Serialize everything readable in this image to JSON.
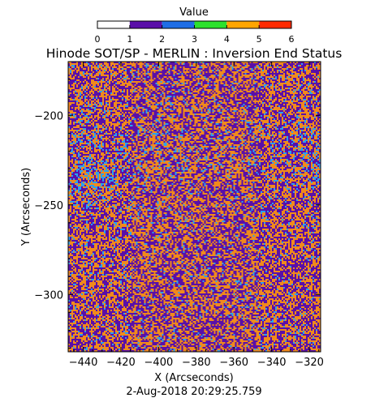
{
  "chart_data": {
    "type": "heatmap",
    "title": "Hinode SOT/SP - MERLIN : Inversion End Status",
    "colorbar": {
      "title": "Value",
      "range": [
        0,
        6
      ],
      "ticks": [
        "0",
        "1",
        "2",
        "3",
        "4",
        "5",
        "6"
      ],
      "segments": [
        {
          "from": 0,
          "to": 1,
          "color": "#ffffff"
        },
        {
          "from": 1,
          "to": 2,
          "color": "#5a0fa8"
        },
        {
          "from": 2,
          "to": 3,
          "color": "#1f6ee6"
        },
        {
          "from": 3,
          "to": 4,
          "color": "#2de12d"
        },
        {
          "from": 4,
          "to": 5,
          "color": "#ffa500"
        },
        {
          "from": 5,
          "to": 6,
          "color": "#ff2a00"
        }
      ]
    },
    "xlabel": "X (Arcseconds)",
    "ylabel": "Y (Arcseconds)",
    "xlim": [
      -448,
      -314
    ],
    "ylim": [
      -332,
      -170
    ],
    "xticks": [
      -440,
      -420,
      -400,
      -380,
      -360,
      -340,
      -320
    ],
    "yticks": [
      -200,
      -250,
      -300
    ],
    "xtick_labels": [
      "−440",
      "−420",
      "−400",
      "−380",
      "−360",
      "−340",
      "−320"
    ],
    "ytick_labels": [
      "−200",
      "−250",
      "−300"
    ],
    "status_colors": {
      "1": "#5a0fa8",
      "2": "#2aa0f0",
      "4": "#f08a1c"
    },
    "dominant_values": [
      1,
      4,
      2
    ],
    "footer": "2-Aug-2018 20:29:25.759"
  }
}
